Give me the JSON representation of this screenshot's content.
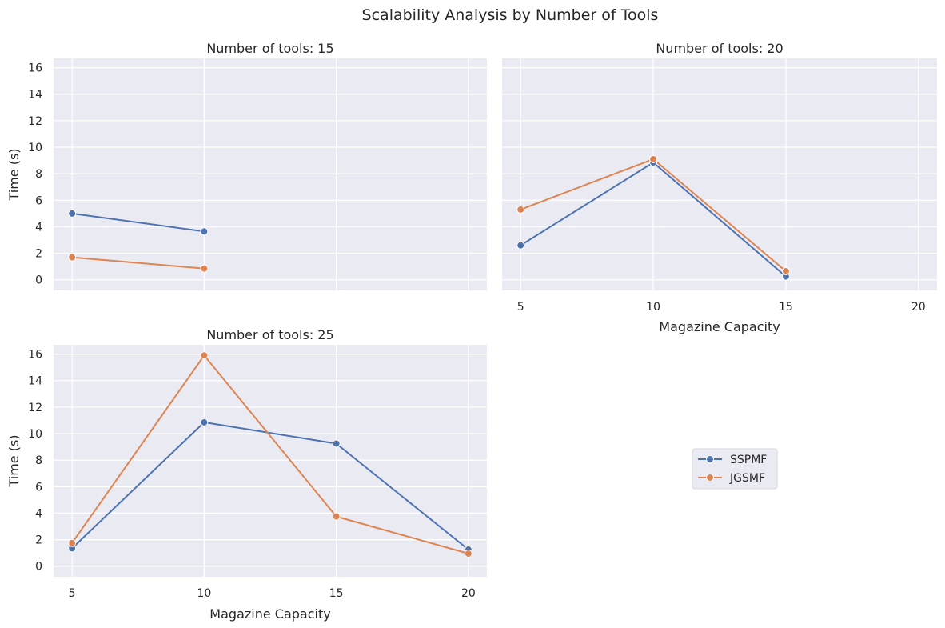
{
  "figure": {
    "suptitle": "Scalability Analysis by Number of Tools"
  },
  "colors": {
    "background": "#eaeaf2",
    "grid": "#ffffff",
    "SSPMF": "#4c72b0",
    "JGSMF": "#dd8452"
  },
  "legend": {
    "placement": "center of empty bottom-right panel",
    "entries": [
      "SSPMF",
      "JGSMF"
    ]
  },
  "chart_data": [
    {
      "type": "line",
      "title": "Number of tools: 15",
      "xlabel": "",
      "ylabel": "Time (s)",
      "x_ticks": [
        5,
        10,
        15,
        20
      ],
      "x_tick_labels_shown": false,
      "y_ticks": [
        0,
        2,
        4,
        6,
        8,
        10,
        12,
        14,
        16
      ],
      "xlim": [
        4.3,
        20.7
      ],
      "ylim": [
        -0.8,
        16.7
      ],
      "grid": true,
      "series": [
        {
          "name": "SSPMF",
          "x": [
            5,
            10
          ],
          "values": [
            5.0,
            3.65
          ]
        },
        {
          "name": "JGSMF",
          "x": [
            5,
            10
          ],
          "values": [
            1.7,
            0.85
          ]
        }
      ]
    },
    {
      "type": "line",
      "title": "Number of tools: 20",
      "xlabel": "Magazine Capacity",
      "ylabel": "",
      "x_ticks": [
        5,
        10,
        15,
        20
      ],
      "x_tick_labels_shown": true,
      "y_ticks": [
        0,
        2,
        4,
        6,
        8,
        10,
        12,
        14,
        16
      ],
      "y_tick_labels_shown": false,
      "xlim": [
        4.3,
        20.7
      ],
      "ylim": [
        -0.8,
        16.7
      ],
      "grid": true,
      "series": [
        {
          "name": "SSPMF",
          "x": [
            5,
            10,
            15
          ],
          "values": [
            2.6,
            8.85,
            0.25
          ]
        },
        {
          "name": "JGSMF",
          "x": [
            5,
            10,
            15
          ],
          "values": [
            5.3,
            9.1,
            0.65
          ]
        }
      ]
    },
    {
      "type": "line",
      "title": "Number of tools: 25",
      "xlabel": "Magazine Capacity",
      "ylabel": "Time (s)",
      "x_ticks": [
        5,
        10,
        15,
        20
      ],
      "x_tick_labels_shown": true,
      "y_ticks": [
        0,
        2,
        4,
        6,
        8,
        10,
        12,
        14,
        16
      ],
      "xlim": [
        4.3,
        20.7
      ],
      "ylim": [
        -0.8,
        16.7
      ],
      "grid": true,
      "series": [
        {
          "name": "SSPMF",
          "x": [
            5,
            10,
            15,
            20
          ],
          "values": [
            1.35,
            10.85,
            9.25,
            1.25
          ]
        },
        {
          "name": "JGSMF",
          "x": [
            5,
            10,
            15,
            20
          ],
          "values": [
            1.75,
            15.9,
            3.75,
            0.95
          ]
        }
      ]
    }
  ]
}
